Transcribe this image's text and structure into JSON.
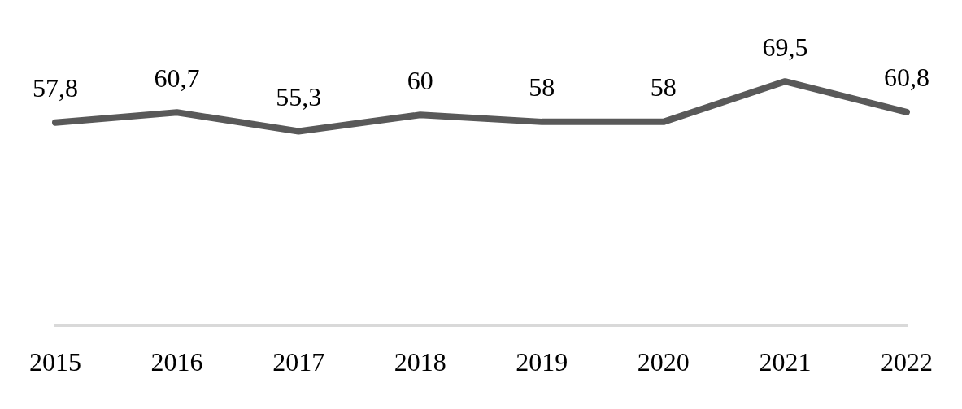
{
  "chart_data": {
    "type": "line",
    "categories": [
      "2015",
      "2016",
      "2017",
      "2018",
      "2019",
      "2020",
      "2021",
      "2022"
    ],
    "series": [
      {
        "color": "#595959",
        "values": [
          57.8,
          60.7,
          55.3,
          60,
          58,
          58,
          69.5,
          60.8
        ],
        "value_labels": [
          "57,8",
          "60,7",
          "55,3",
          "60",
          "58",
          "58",
          "69,5",
          "60,8"
        ]
      }
    ],
    "tick_labels": "x",
    "grid": false,
    "legend": false,
    "marker": "none",
    "line_style": "solid"
  }
}
